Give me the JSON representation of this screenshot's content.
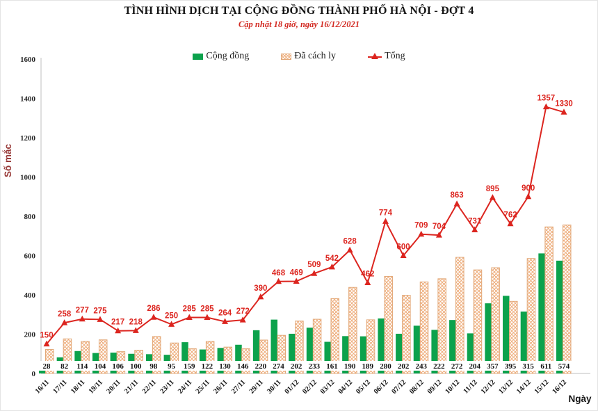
{
  "chart_data": {
    "type": "bar",
    "combo": "grouped bars + line overlay",
    "title": "TÌNH HÌNH DỊCH TẠI CỘNG ĐỒNG THÀNH PHỐ HÀ NỘI - ĐỢT 4",
    "subtitle": "Cập nhật 18 giờ, ngày 16/12/2021",
    "title_color": "#141414",
    "subtitle_color": "#d22a22",
    "xlabel": "Ngày",
    "ylabel": "Số mắc",
    "ylabel_color": "#963634",
    "axis_color": "#bfbfbf",
    "ylim": [
      0,
      1600
    ],
    "yticks": [
      0,
      200,
      400,
      600,
      800,
      1000,
      1200,
      1400,
      1600
    ],
    "grid": false,
    "legend_position": "top",
    "categories": [
      "16/11",
      "17/11",
      "18/11",
      "19/11",
      "20/11",
      "21/11",
      "22/11",
      "23/11",
      "24/11",
      "25/11",
      "26/11",
      "27/11",
      "29/11",
      "30/11",
      "01/12",
      "02/12",
      "03/12",
      "04/12",
      "05/12",
      "06/12",
      "07/12",
      "08/12",
      "09/12",
      "10/12",
      "11/12",
      "12/12",
      "13/12",
      "14/12",
      "15/12",
      "16/12"
    ],
    "series": [
      {
        "name": "Cộng đồng",
        "type": "bar",
        "color": "#0ca24c",
        "labels_shown": true,
        "values": [
          28,
          82,
          114,
          104,
          106,
          100,
          98,
          95,
          159,
          122,
          130,
          146,
          220,
          274,
          202,
          233,
          161,
          190,
          189,
          280,
          202,
          243,
          222,
          272,
          204,
          357,
          395,
          315,
          611,
          574
        ]
      },
      {
        "name": "Đã cách ly",
        "type": "bar",
        "style": "hatch",
        "color": "#eeac7a",
        "border_color": "#e2a878",
        "labels_shown": false,
        "values": [
          122,
          176,
          163,
          171,
          111,
          118,
          188,
          155,
          126,
          163,
          134,
          126,
          170,
          194,
          267,
          276,
          381,
          438,
          273,
          494,
          398,
          466,
          482,
          591,
          527,
          538,
          367,
          585,
          746,
          756
        ]
      },
      {
        "name": "Tổng",
        "type": "line",
        "color": "#dc251f",
        "marker": "triangle-up",
        "labels_shown": true,
        "values": [
          150,
          258,
          277,
          275,
          217,
          218,
          286,
          250,
          285,
          285,
          264,
          272,
          390,
          468,
          469,
          509,
          542,
          628,
          462,
          774,
          600,
          709,
          704,
          863,
          731,
          895,
          762,
          900,
          1357,
          1330
        ]
      }
    ]
  }
}
